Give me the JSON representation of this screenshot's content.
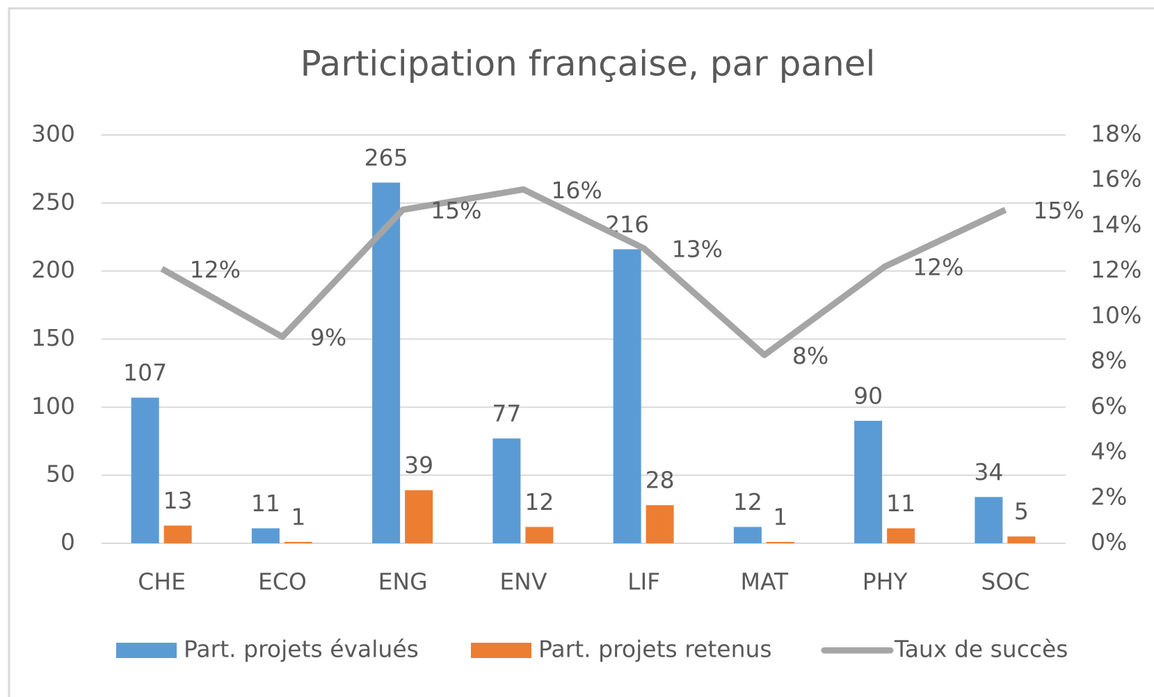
{
  "chart_data": {
    "type": "bar-line",
    "title": "Participation française, par panel",
    "categories": [
      "CHE",
      "ECO",
      "ENG",
      "ENV",
      "LIF",
      "MAT",
      "PHY",
      "SOC"
    ],
    "series": [
      {
        "name": "Part. projets évalués",
        "type": "bar",
        "color": "#5b9bd5",
        "values": [
          107,
          11,
          265,
          77,
          216,
          12,
          90,
          34
        ]
      },
      {
        "name": "Part. projets retenus",
        "type": "bar",
        "color": "#ed7d31",
        "values": [
          13,
          1,
          39,
          12,
          28,
          1,
          11,
          5
        ]
      },
      {
        "name": "Taux de succès",
        "type": "line",
        "axis": "y2",
        "color": "#a5a5a5",
        "values": [
          12.1,
          9.1,
          14.7,
          15.6,
          13.0,
          8.3,
          12.2,
          14.7
        ],
        "value_labels": [
          "12%",
          "9%",
          "15%",
          "16%",
          "13%",
          "8%",
          "12%",
          "15%"
        ]
      }
    ],
    "ylim": [
      0,
      300
    ],
    "yticks": [
      0,
      50,
      100,
      150,
      200,
      250,
      300
    ],
    "y2lim": [
      0,
      18
    ],
    "y2ticks": [
      {
        "value": 0,
        "label": "0%"
      },
      {
        "value": 2,
        "label": "2%"
      },
      {
        "value": 4,
        "label": "4%"
      },
      {
        "value": 6,
        "label": "6%"
      },
      {
        "value": 8,
        "label": "8%"
      },
      {
        "value": 10,
        "label": "10%"
      },
      {
        "value": 12,
        "label": "12%"
      },
      {
        "value": 14,
        "label": "14%"
      },
      {
        "value": 16,
        "label": "16%"
      },
      {
        "value": 18,
        "label": "18%"
      }
    ],
    "grid": true,
    "legend": "bottom"
  }
}
